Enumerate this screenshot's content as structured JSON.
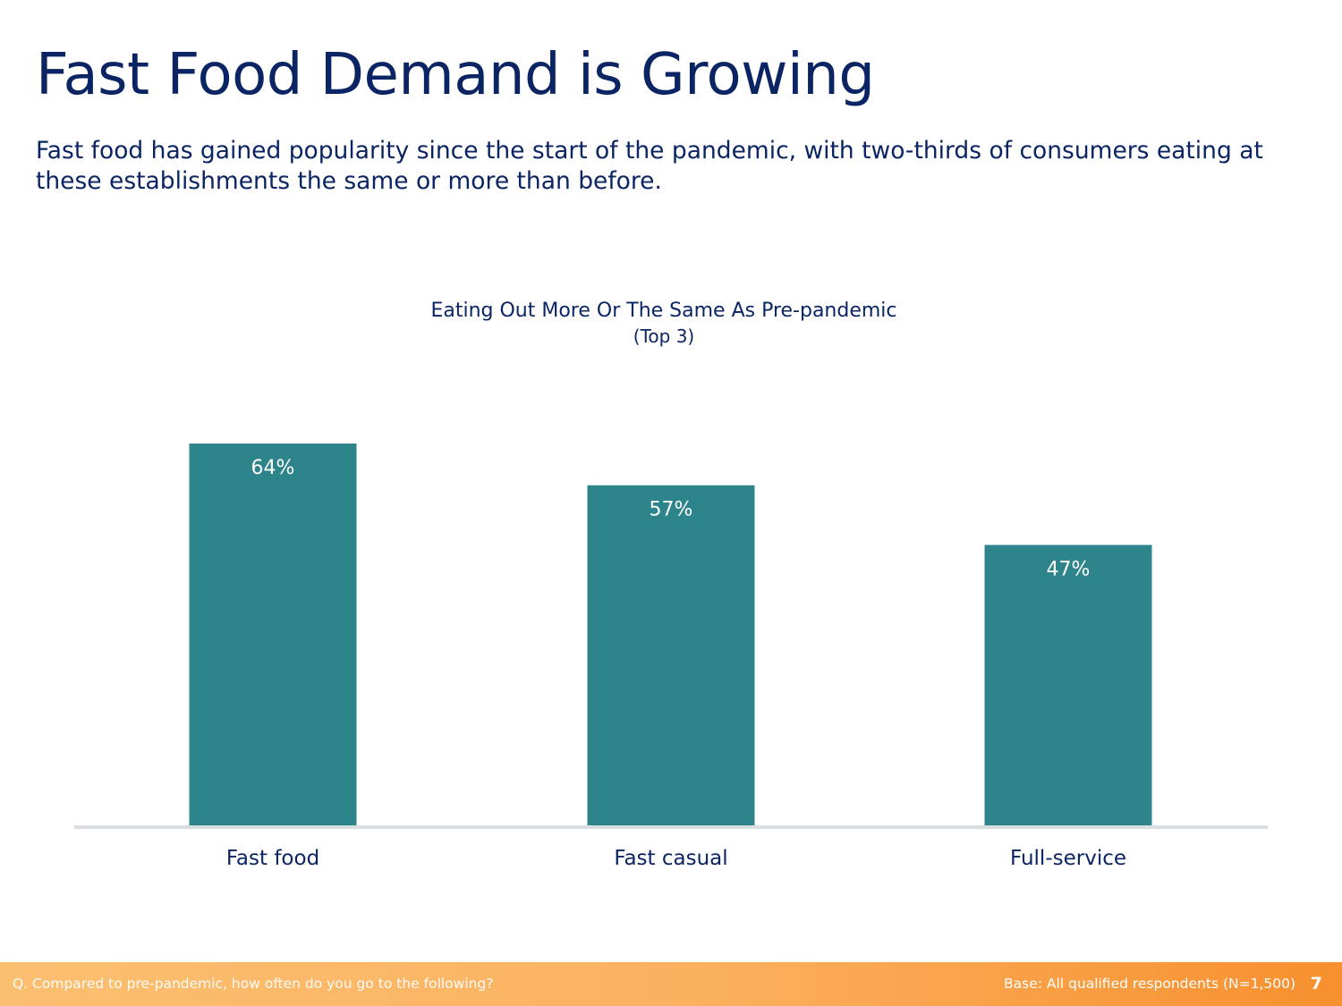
{
  "slide": {
    "title": "Fast Food Demand is Growing",
    "subtitle": "Fast food has gained popularity since the start of the pandemic, with two-thirds of consumers eating at these establishments the same or more than before."
  },
  "chart_data": {
    "type": "bar",
    "title": "Eating Out More Or The Same As Pre-pandemic",
    "subtitle": "(Top 3)",
    "categories": [
      "Fast food",
      "Fast casual",
      "Full-service"
    ],
    "values": [
      64,
      57,
      47
    ],
    "value_labels": [
      "64%",
      "57%",
      "47%"
    ],
    "ylim": [
      0,
      64
    ],
    "grid": false,
    "legend": "none",
    "bar_color": "#2e848b",
    "axis_color": "#d9dee2"
  },
  "footer": {
    "question": "Q. Compared to pre-pandemic, how often do you go to the following?",
    "base": "Base: All qualified respondents (N=1,500)",
    "page_number": "7"
  }
}
